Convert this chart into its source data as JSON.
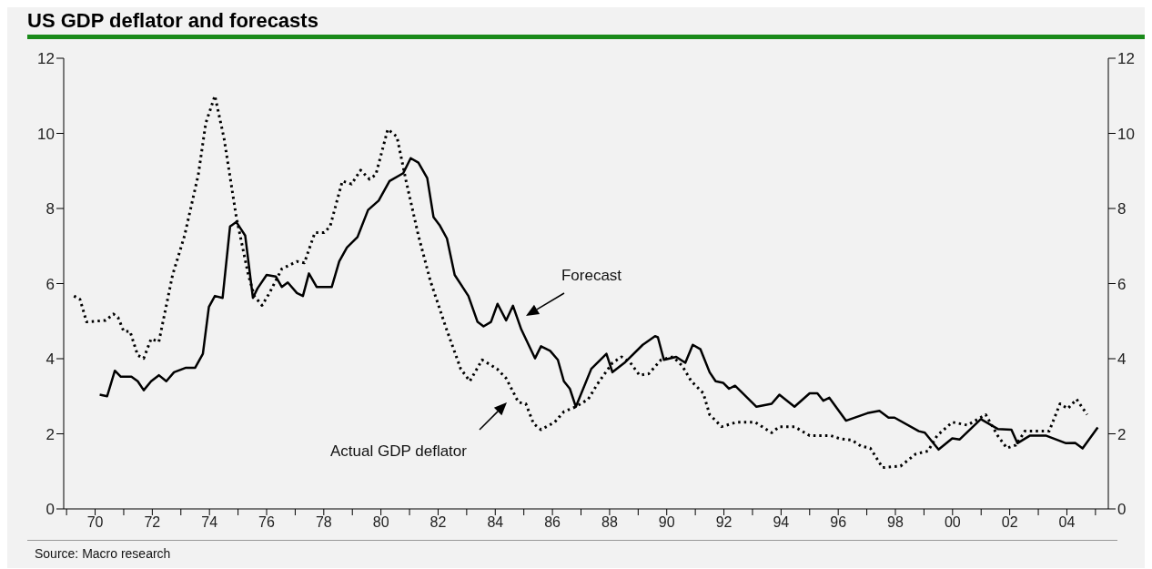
{
  "chart_data": {
    "type": "line",
    "title": "US GDP deflator and forecasts",
    "xlim": [
      1968.9,
      2005.45
    ],
    "xticks": [
      {
        "value": 1969,
        "label": null
      },
      {
        "value": 1970,
        "label": "70"
      },
      {
        "value": 1971,
        "label": null
      },
      {
        "value": 1972,
        "label": "72"
      },
      {
        "value": 1973,
        "label": null
      },
      {
        "value": 1974,
        "label": "74"
      },
      {
        "value": 1975,
        "label": null
      },
      {
        "value": 1976,
        "label": "76"
      },
      {
        "value": 1977,
        "label": null
      },
      {
        "value": 1978,
        "label": "78"
      },
      {
        "value": 1979,
        "label": null
      },
      {
        "value": 1980,
        "label": "80"
      },
      {
        "value": 1981,
        "label": null
      },
      {
        "value": 1982,
        "label": "82"
      },
      {
        "value": 1983,
        "label": null
      },
      {
        "value": 1984,
        "label": "84"
      },
      {
        "value": 1985,
        "label": null
      },
      {
        "value": 1986,
        "label": "86"
      },
      {
        "value": 1987,
        "label": null
      },
      {
        "value": 1988,
        "label": "88"
      },
      {
        "value": 1989,
        "label": null
      },
      {
        "value": 1990,
        "label": "90"
      },
      {
        "value": 1991,
        "label": null
      },
      {
        "value": 1992,
        "label": "92"
      },
      {
        "value": 1993,
        "label": null
      },
      {
        "value": 1994,
        "label": "94"
      },
      {
        "value": 1995,
        "label": null
      },
      {
        "value": 1996,
        "label": "96"
      },
      {
        "value": 1997,
        "label": null
      },
      {
        "value": 1998,
        "label": "98"
      },
      {
        "value": 1999,
        "label": null
      },
      {
        "value": 2000,
        "label": "00"
      },
      {
        "value": 2001,
        "label": null
      },
      {
        "value": 2002,
        "label": "02"
      },
      {
        "value": 2003,
        "label": null
      },
      {
        "value": 2004,
        "label": "04"
      },
      {
        "value": 2005,
        "label": null
      }
    ],
    "ylim": [
      0,
      12
    ],
    "yticks": [
      0,
      2,
      4,
      6,
      8,
      10,
      12
    ],
    "y2lim": [
      0,
      12
    ],
    "y2ticks": [
      0,
      2,
      4,
      6,
      8,
      10,
      12
    ],
    "grid": false,
    "legend": false,
    "marker": "none",
    "series": [
      {
        "color": "#000000",
        "line_style": "dotted",
        "x": [
          1969.26,
          1969.47,
          1969.7,
          1970.37,
          1970.64,
          1970.8,
          1971.0,
          1971.22,
          1971.49,
          1971.7,
          1971.96,
          1972.23,
          1972.71,
          1973.13,
          1973.61,
          1973.87,
          1974.19,
          1974.51,
          1974.94,
          1975.36,
          1975.57,
          1975.84,
          1976.1,
          1976.53,
          1977.06,
          1977.32,
          1977.69,
          1978.01,
          1978.22,
          1978.65,
          1978.97,
          1979.29,
          1979.6,
          1979.82,
          1980.24,
          1980.56,
          1980.88,
          1981.31,
          1981.73,
          1982.26,
          1982.79,
          1983.11,
          1983.54,
          1984.06,
          1984.38,
          1984.81,
          1985.07,
          1985.34,
          1985.6,
          1986.08,
          1986.4,
          1986.82,
          1987.25,
          1987.57,
          1988.1,
          1988.42,
          1988.73,
          1989.05,
          1989.37,
          1989.8,
          1990.22,
          1990.54,
          1990.86,
          1991.28,
          1991.5,
          1991.92,
          1992.45,
          1993.09,
          1993.67,
          1993.94,
          1994.47,
          1995.0,
          1995.74,
          1996.06,
          1996.48,
          1996.8,
          1997.12,
          1997.55,
          1998.18,
          1998.71,
          1999.14,
          1999.46,
          1999.99,
          2000.52,
          2001.16,
          2001.58,
          2001.9,
          2002.22,
          2002.53,
          2003.38,
          2003.76,
          2004.03,
          2004.34,
          2004.71
        ],
        "values": [
          5.67,
          5.58,
          4.98,
          5.02,
          5.19,
          5.1,
          4.73,
          4.73,
          4.09,
          4.01,
          4.53,
          4.45,
          6.23,
          7.28,
          8.9,
          10.27,
          11.0,
          9.87,
          7.77,
          6.23,
          5.67,
          5.42,
          5.75,
          6.39,
          6.59,
          6.55,
          7.36,
          7.36,
          7.52,
          8.73,
          8.65,
          9.02,
          8.78,
          8.9,
          10.11,
          9.91,
          8.73,
          7.28,
          6.07,
          4.86,
          3.73,
          3.4,
          3.97,
          3.73,
          3.48,
          2.84,
          2.8,
          2.27,
          2.11,
          2.31,
          2.59,
          2.72,
          2.92,
          3.32,
          3.89,
          4.05,
          3.89,
          3.56,
          3.6,
          3.97,
          4.05,
          3.81,
          3.4,
          3.08,
          2.51,
          2.19,
          2.31,
          2.31,
          2.03,
          2.19,
          2.19,
          1.95,
          1.95,
          1.87,
          1.83,
          1.67,
          1.62,
          1.1,
          1.14,
          1.46,
          1.54,
          1.95,
          2.31,
          2.23,
          2.51,
          1.95,
          1.62,
          1.7,
          2.07,
          2.07,
          2.8,
          2.67,
          2.92,
          2.51
        ]
      },
      {
        "color": "#000000",
        "line_style": "solid",
        "x": [
          1970.16,
          1970.42,
          1970.69,
          1970.9,
          1971.27,
          1971.49,
          1971.7,
          1971.96,
          1972.23,
          1972.49,
          1972.76,
          1973.18,
          1973.5,
          1973.77,
          1973.98,
          1974.19,
          1974.46,
          1974.72,
          1974.94,
          1975.25,
          1975.52,
          1975.68,
          1976.0,
          1976.32,
          1976.53,
          1976.74,
          1977.06,
          1977.27,
          1977.48,
          1977.75,
          1978.28,
          1978.54,
          1978.81,
          1979.18,
          1979.55,
          1979.92,
          1980.3,
          1980.78,
          1981.04,
          1981.31,
          1981.62,
          1981.84,
          1982.05,
          1982.31,
          1982.58,
          1983.06,
          1983.38,
          1983.59,
          1983.85,
          1984.08,
          1984.38,
          1984.62,
          1984.91,
          1985.39,
          1985.6,
          1985.92,
          1986.19,
          1986.4,
          1986.61,
          1986.82,
          1987.36,
          1987.89,
          1988.1,
          1988.52,
          1989.16,
          1989.59,
          1989.69,
          1989.9,
          1990.33,
          1990.65,
          1990.91,
          1991.18,
          1991.5,
          1991.71,
          1991.97,
          1992.18,
          1992.39,
          1993.14,
          1993.67,
          1993.94,
          1994.47,
          1995.0,
          1995.27,
          1995.48,
          1995.69,
          1996.27,
          1997.02,
          1997.44,
          1997.76,
          1997.97,
          1998.82,
          1999.03,
          1999.51,
          1999.99,
          2000.25,
          2000.99,
          2001.58,
          2002.06,
          2002.27,
          2002.7,
          2003.28,
          2003.97,
          2004.29,
          2004.55,
          2005.08
        ],
        "values": [
          3.04,
          3.0,
          3.68,
          3.52,
          3.52,
          3.4,
          3.16,
          3.4,
          3.56,
          3.4,
          3.64,
          3.76,
          3.76,
          4.13,
          5.38,
          5.67,
          5.62,
          7.52,
          7.64,
          7.28,
          5.62,
          5.87,
          6.23,
          6.19,
          5.91,
          6.03,
          5.75,
          5.67,
          6.27,
          5.91,
          5.91,
          6.59,
          6.96,
          7.24,
          7.96,
          8.21,
          8.73,
          8.94,
          9.34,
          9.22,
          8.81,
          7.77,
          7.56,
          7.2,
          6.23,
          5.67,
          4.98,
          4.86,
          4.98,
          5.46,
          5.02,
          5.41,
          4.78,
          4.01,
          4.33,
          4.21,
          3.97,
          3.4,
          3.2,
          2.72,
          3.73,
          4.13,
          3.64,
          3.89,
          4.37,
          4.6,
          4.57,
          3.97,
          4.05,
          3.89,
          4.37,
          4.25,
          3.64,
          3.4,
          3.36,
          3.2,
          3.28,
          2.72,
          2.8,
          3.04,
          2.72,
          3.08,
          3.08,
          2.88,
          2.96,
          2.35,
          2.55,
          2.61,
          2.43,
          2.43,
          2.07,
          2.03,
          1.58,
          1.88,
          1.85,
          2.39,
          2.13,
          2.11,
          1.75,
          1.95,
          1.95,
          1.75,
          1.76,
          1.61,
          2.17
        ]
      }
    ],
    "annotations": [
      "Forecast",
      "Actual GDP deflator",
      "Source: Macro research"
    ]
  }
}
